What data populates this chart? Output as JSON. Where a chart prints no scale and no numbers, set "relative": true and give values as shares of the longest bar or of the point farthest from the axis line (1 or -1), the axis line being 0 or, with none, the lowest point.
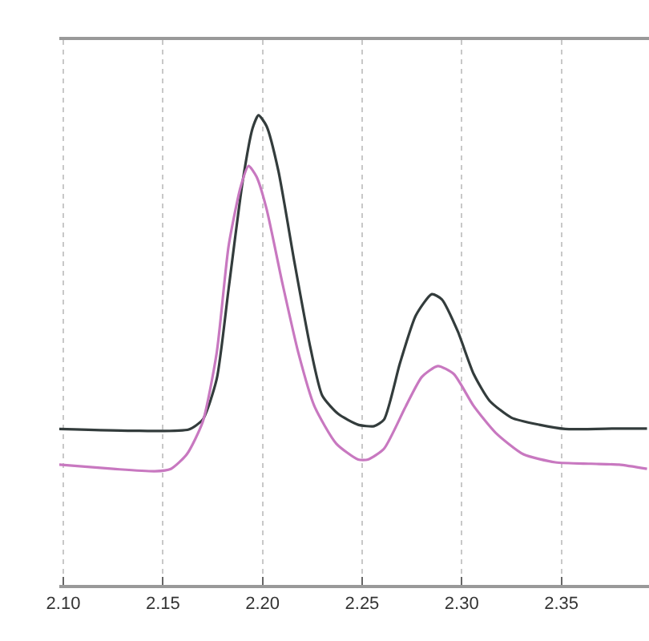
{
  "chart_data": {
    "type": "line",
    "relative": true,
    "grid": "x",
    "legend": false,
    "xlim": [
      2.098,
      2.394
    ],
    "xticks": [
      {
        "value": 2.1,
        "label": "2.10"
      },
      {
        "value": 2.15,
        "label": "2.15"
      },
      {
        "value": 2.2,
        "label": "2.20"
      },
      {
        "value": 2.25,
        "label": "2.25"
      },
      {
        "value": 2.3,
        "label": "2.30"
      },
      {
        "value": 2.35,
        "label": "2.35"
      }
    ],
    "series": [
      {
        "color": "#333c3c",
        "x": [
          2.098,
          2.138,
          2.163,
          2.17,
          2.177,
          2.183,
          2.19,
          2.195,
          2.198,
          2.202,
          2.208,
          2.216,
          2.224,
          2.23,
          2.238,
          2.248,
          2.256,
          2.261,
          2.269,
          2.277,
          2.285,
          2.29,
          2.298,
          2.306,
          2.314,
          2.325,
          2.339,
          2.352,
          2.379,
          2.393
        ],
        "values": [
          0.332,
          0.328,
          0.331,
          0.352,
          0.438,
          0.631,
          0.858,
          0.972,
          1.0,
          0.977,
          0.881,
          0.688,
          0.506,
          0.403,
          0.364,
          0.341,
          0.338,
          0.352,
          0.472,
          0.574,
          0.619,
          0.608,
          0.54,
          0.449,
          0.392,
          0.356,
          0.341,
          0.332,
          0.333,
          0.333
        ]
      },
      {
        "color": "#c878c0",
        "x": [
          2.098,
          2.125,
          2.146,
          2.154,
          2.162,
          2.17,
          2.177,
          2.183,
          2.189,
          2.193,
          2.197,
          2.202,
          2.21,
          2.218,
          2.226,
          2.237,
          2.248,
          2.253,
          2.261,
          2.272,
          2.28,
          2.288,
          2.296,
          2.306,
          2.317,
          2.331,
          2.347,
          2.365,
          2.379,
          2.393
        ],
        "values": [
          0.256,
          0.247,
          0.242,
          0.247,
          0.278,
          0.347,
          0.494,
          0.722,
          0.847,
          0.892,
          0.869,
          0.801,
          0.642,
          0.494,
          0.381,
          0.301,
          0.267,
          0.267,
          0.29,
          0.381,
          0.443,
          0.466,
          0.449,
          0.381,
          0.324,
          0.278,
          0.261,
          0.258,
          0.256,
          0.247
        ]
      }
    ]
  }
}
